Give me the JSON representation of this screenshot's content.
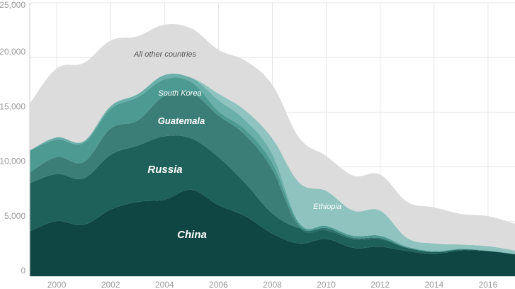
{
  "chart_data": {
    "type": "area",
    "stacked": true,
    "x": [
      1999,
      2000,
      2001,
      2002,
      2003,
      2004,
      2005,
      2006,
      2007,
      2008,
      2009,
      2010,
      2011,
      2012,
      2013,
      2014,
      2015,
      2016,
      2017
    ],
    "xticks": [
      "2000",
      "2002",
      "2004",
      "2006",
      "2008",
      "2010",
      "2012",
      "2014",
      "2016"
    ],
    "ylim": [
      0,
      25000
    ],
    "yticks": [
      "0",
      "5,000",
      "10,000",
      "15,000",
      "20,000",
      "25,000"
    ],
    "grid": true,
    "series": [
      {
        "name": "China",
        "color": "#0f4542",
        "values": [
          4100,
          5050,
          4700,
          6100,
          6800,
          7000,
          7900,
          6500,
          5500,
          3900,
          3000,
          3400,
          2600,
          2700,
          2300,
          2050,
          2350,
          2300,
          2000
        ]
      },
      {
        "name": "Russia",
        "color": "#1e615b",
        "values": [
          4400,
          4300,
          4250,
          5000,
          5150,
          5800,
          4700,
          4400,
          3000,
          1850,
          1400,
          800,
          800,
          700,
          300,
          150,
          100,
          0,
          0
        ]
      },
      {
        "name": "Guatemala",
        "color": "#3b7e77",
        "values": [
          1000,
          1550,
          1500,
          2400,
          2300,
          3700,
          4150,
          3800,
          4400,
          4000,
          0,
          0,
          0,
          0,
          0,
          0,
          0,
          0,
          0
        ]
      },
      {
        "name": "",
        "color": "#2b706a",
        "values": [
          0,
          0,
          0,
          0,
          0,
          0,
          0,
          0,
          0,
          0,
          150,
          200,
          100,
          100,
          0,
          0,
          0,
          0,
          0
        ]
      },
      {
        "name": "",
        "color": "#4d9a93",
        "values": [
          2000,
          1600,
          1750,
          1800,
          2100,
          1500,
          1000,
          400,
          500,
          600,
          300,
          200,
          200,
          200,
          100,
          100,
          50,
          50,
          50
        ]
      },
      {
        "name": "South Korea",
        "color": "#6aafa9",
        "values": [
          0,
          200,
          150,
          250,
          300,
          400,
          400,
          1000,
          850,
          800,
          0,
          0,
          0,
          0,
          0,
          0,
          0,
          0,
          0
        ]
      },
      {
        "name": "Ethiopia",
        "color": "#8ec3bf",
        "values": [
          0,
          0,
          0,
          0,
          0,
          0,
          0,
          600,
          900,
          1450,
          3700,
          3200,
          2300,
          2300,
          800,
          700,
          400,
          400,
          300
        ]
      },
      {
        "name": "All other countries",
        "color": "#dcdcdc",
        "values": [
          4300,
          6300,
          7150,
          6000,
          5300,
          4600,
          4500,
          4000,
          4550,
          4900,
          4100,
          3200,
          3200,
          3300,
          3300,
          3300,
          2800,
          2750,
          2450
        ]
      }
    ],
    "labels": [
      {
        "text": "China",
        "x": 2000,
        "y": 1500
      },
      {
        "text": "Russia",
        "x": 2000,
        "y": 7000
      },
      {
        "text": "Guatemala",
        "x": 2000,
        "y": 10000
      },
      {
        "text": "South Korea",
        "x": 2000,
        "y": 12000
      },
      {
        "text": "All other countries",
        "x": 2000,
        "y": 20000
      },
      {
        "text": "Ethiopia",
        "x": 2010,
        "y": 6200
      }
    ]
  }
}
